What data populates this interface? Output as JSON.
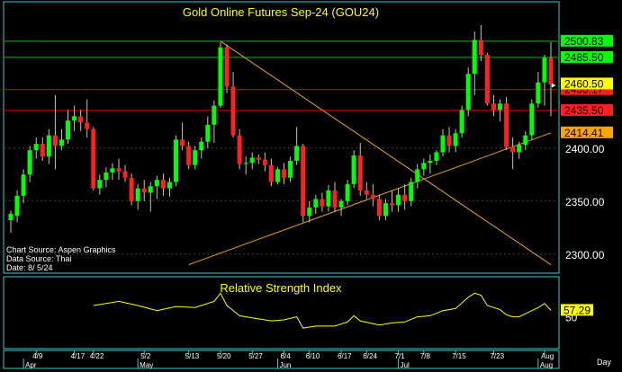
{
  "chart_data": [
    {
      "type": "candlestick",
      "title": "Gold  Online  Futures  Sep-24  (GOU24)",
      "ylim": [
        2282,
        2538
      ],
      "y_ticks": [
        2300,
        2350,
        2400
      ],
      "y_tick_labels": [
        "2300.00",
        "2350.00",
        "2400.00"
      ],
      "x_tick_labels": [
        "4/9",
        "4/17",
        "4/22",
        "5/2",
        "5/13",
        "5/20",
        "5/27",
        "6/4",
        "6/10",
        "6/17",
        "6/24",
        "7/1",
        "7/8",
        "7/15",
        "7/23",
        "Aug"
      ],
      "month_labels": [
        "Apr",
        "May",
        "Jun",
        "Jul",
        "Aug"
      ],
      "x_period_label": "Day",
      "source_lines": [
        "Chart Source: Aspen Graphics",
        "Data Source: Thai",
        "Date: 8/ 5/24"
      ],
      "candles": [
        {
          "date": "4/3",
          "o": 2332,
          "h": 2341,
          "l": 2320,
          "c": 2338
        },
        {
          "date": "4/4",
          "o": 2336,
          "h": 2360,
          "l": 2330,
          "c": 2355
        },
        {
          "date": "4/5",
          "o": 2355,
          "h": 2380,
          "l": 2348,
          "c": 2375
        },
        {
          "date": "4/8",
          "o": 2375,
          "h": 2402,
          "l": 2368,
          "c": 2398
        },
        {
          "date": "4/9",
          "o": 2398,
          "h": 2410,
          "l": 2390,
          "c": 2404
        },
        {
          "date": "4/10",
          "o": 2404,
          "h": 2410,
          "l": 2388,
          "c": 2392
        },
        {
          "date": "4/11",
          "o": 2392,
          "h": 2418,
          "l": 2385,
          "c": 2412
        },
        {
          "date": "4/12",
          "o": 2412,
          "h": 2450,
          "l": 2380,
          "c": 2402
        },
        {
          "date": "4/15",
          "o": 2402,
          "h": 2418,
          "l": 2398,
          "c": 2408
        },
        {
          "date": "4/16",
          "o": 2408,
          "h": 2436,
          "l": 2404,
          "c": 2426
        },
        {
          "date": "4/17",
          "o": 2426,
          "h": 2440,
          "l": 2416,
          "c": 2430
        },
        {
          "date": "4/18",
          "o": 2430,
          "h": 2436,
          "l": 2416,
          "c": 2424
        },
        {
          "date": "4/19",
          "o": 2424,
          "h": 2446,
          "l": 2410,
          "c": 2418
        },
        {
          "date": "4/22",
          "o": 2418,
          "h": 2420,
          "l": 2360,
          "c": 2362
        },
        {
          "date": "4/23",
          "o": 2362,
          "h": 2375,
          "l": 2356,
          "c": 2370
        },
        {
          "date": "4/24",
          "o": 2370,
          "h": 2382,
          "l": 2363,
          "c": 2377
        },
        {
          "date": "4/25",
          "o": 2377,
          "h": 2386,
          "l": 2370,
          "c": 2381
        },
        {
          "date": "4/26",
          "o": 2381,
          "h": 2390,
          "l": 2370,
          "c": 2378
        },
        {
          "date": "4/29",
          "o": 2378,
          "h": 2384,
          "l": 2368,
          "c": 2372
        },
        {
          "date": "4/30",
          "o": 2372,
          "h": 2376,
          "l": 2346,
          "c": 2350
        },
        {
          "date": "5/1",
          "o": 2350,
          "h": 2366,
          "l": 2342,
          "c": 2362
        },
        {
          "date": "5/2",
          "o": 2362,
          "h": 2370,
          "l": 2350,
          "c": 2358
        },
        {
          "date": "5/3",
          "o": 2358,
          "h": 2368,
          "l": 2340,
          "c": 2364
        },
        {
          "date": "5/6",
          "o": 2364,
          "h": 2374,
          "l": 2352,
          "c": 2370
        },
        {
          "date": "5/7",
          "o": 2370,
          "h": 2376,
          "l": 2355,
          "c": 2362
        },
        {
          "date": "5/8",
          "o": 2362,
          "h": 2372,
          "l": 2354,
          "c": 2368
        },
        {
          "date": "5/9",
          "o": 2368,
          "h": 2412,
          "l": 2364,
          "c": 2408
        },
        {
          "date": "5/10",
          "o": 2408,
          "h": 2424,
          "l": 2398,
          "c": 2402
        },
        {
          "date": "5/13",
          "o": 2402,
          "h": 2406,
          "l": 2380,
          "c": 2384
        },
        {
          "date": "5/14",
          "o": 2384,
          "h": 2402,
          "l": 2380,
          "c": 2398
        },
        {
          "date": "5/15",
          "o": 2398,
          "h": 2410,
          "l": 2390,
          "c": 2406
        },
        {
          "date": "5/16",
          "o": 2406,
          "h": 2430,
          "l": 2400,
          "c": 2422
        },
        {
          "date": "5/17",
          "o": 2422,
          "h": 2445,
          "l": 2405,
          "c": 2440
        },
        {
          "date": "5/20",
          "o": 2440,
          "h": 2500,
          "l": 2438,
          "c": 2495
        },
        {
          "date": "5/21",
          "o": 2495,
          "h": 2498,
          "l": 2452,
          "c": 2458
        },
        {
          "date": "5/22",
          "o": 2458,
          "h": 2472,
          "l": 2410,
          "c": 2412
        },
        {
          "date": "5/23",
          "o": 2412,
          "h": 2418,
          "l": 2380,
          "c": 2385
        },
        {
          "date": "5/24",
          "o": 2385,
          "h": 2392,
          "l": 2375,
          "c": 2386
        },
        {
          "date": "5/28",
          "o": 2386,
          "h": 2396,
          "l": 2380,
          "c": 2391
        },
        {
          "date": "5/29",
          "o": 2391,
          "h": 2394,
          "l": 2385,
          "c": 2389
        },
        {
          "date": "5/30",
          "o": 2389,
          "h": 2396,
          "l": 2378,
          "c": 2384
        },
        {
          "date": "5/31",
          "o": 2384,
          "h": 2390,
          "l": 2364,
          "c": 2368
        },
        {
          "date": "6/3",
          "o": 2368,
          "h": 2382,
          "l": 2366,
          "c": 2380
        },
        {
          "date": "6/4",
          "o": 2380,
          "h": 2386,
          "l": 2366,
          "c": 2372
        },
        {
          "date": "6/5",
          "o": 2372,
          "h": 2392,
          "l": 2368,
          "c": 2388
        },
        {
          "date": "6/6",
          "o": 2388,
          "h": 2420,
          "l": 2384,
          "c": 2402
        },
        {
          "date": "6/7",
          "o": 2402,
          "h": 2404,
          "l": 2330,
          "c": 2336
        },
        {
          "date": "6/10",
          "o": 2336,
          "h": 2350,
          "l": 2330,
          "c": 2344
        },
        {
          "date": "6/11",
          "o": 2344,
          "h": 2356,
          "l": 2338,
          "c": 2352
        },
        {
          "date": "6/12",
          "o": 2352,
          "h": 2358,
          "l": 2340,
          "c": 2345
        },
        {
          "date": "6/13",
          "o": 2345,
          "h": 2365,
          "l": 2340,
          "c": 2360
        },
        {
          "date": "6/14",
          "o": 2360,
          "h": 2368,
          "l": 2340,
          "c": 2344
        },
        {
          "date": "6/17",
          "o": 2344,
          "h": 2352,
          "l": 2336,
          "c": 2350
        },
        {
          "date": "6/18",
          "o": 2350,
          "h": 2370,
          "l": 2346,
          "c": 2366
        },
        {
          "date": "6/20",
          "o": 2366,
          "h": 2398,
          "l": 2362,
          "c": 2393
        },
        {
          "date": "6/21",
          "o": 2393,
          "h": 2405,
          "l": 2355,
          "c": 2360
        },
        {
          "date": "6/24",
          "o": 2360,
          "h": 2368,
          "l": 2352,
          "c": 2356
        },
        {
          "date": "6/25",
          "o": 2356,
          "h": 2366,
          "l": 2345,
          "c": 2352
        },
        {
          "date": "6/26",
          "o": 2352,
          "h": 2356,
          "l": 2332,
          "c": 2336
        },
        {
          "date": "6/27",
          "o": 2336,
          "h": 2352,
          "l": 2332,
          "c": 2348
        },
        {
          "date": "6/28",
          "o": 2348,
          "h": 2360,
          "l": 2340,
          "c": 2346
        },
        {
          "date": "7/1",
          "o": 2346,
          "h": 2362,
          "l": 2340,
          "c": 2356
        },
        {
          "date": "7/2",
          "o": 2356,
          "h": 2366,
          "l": 2342,
          "c": 2350
        },
        {
          "date": "7/3",
          "o": 2350,
          "h": 2372,
          "l": 2345,
          "c": 2368
        },
        {
          "date": "7/5",
          "o": 2368,
          "h": 2385,
          "l": 2362,
          "c": 2380
        },
        {
          "date": "7/8",
          "o": 2380,
          "h": 2390,
          "l": 2374,
          "c": 2386
        },
        {
          "date": "7/9",
          "o": 2386,
          "h": 2394,
          "l": 2376,
          "c": 2388
        },
        {
          "date": "7/10",
          "o": 2388,
          "h": 2398,
          "l": 2384,
          "c": 2396
        },
        {
          "date": "7/11",
          "o": 2396,
          "h": 2418,
          "l": 2392,
          "c": 2412
        },
        {
          "date": "7/12",
          "o": 2412,
          "h": 2420,
          "l": 2396,
          "c": 2402
        },
        {
          "date": "7/15",
          "o": 2402,
          "h": 2418,
          "l": 2396,
          "c": 2414
        },
        {
          "date": "7/16",
          "o": 2414,
          "h": 2440,
          "l": 2410,
          "c": 2436
        },
        {
          "date": "7/17",
          "o": 2436,
          "h": 2476,
          "l": 2430,
          "c": 2470
        },
        {
          "date": "7/18",
          "o": 2470,
          "h": 2510,
          "l": 2450,
          "c": 2502
        },
        {
          "date": "7/19",
          "o": 2502,
          "h": 2516,
          "l": 2482,
          "c": 2488
        },
        {
          "date": "7/22",
          "o": 2488,
          "h": 2490,
          "l": 2440,
          "c": 2442
        },
        {
          "date": "7/23",
          "o": 2442,
          "h": 2450,
          "l": 2430,
          "c": 2436
        },
        {
          "date": "7/24",
          "o": 2436,
          "h": 2446,
          "l": 2425,
          "c": 2442
        },
        {
          "date": "7/25",
          "o": 2442,
          "h": 2448,
          "l": 2398,
          "c": 2401
        },
        {
          "date": "7/26",
          "o": 2401,
          "h": 2410,
          "l": 2380,
          "c": 2396
        },
        {
          "date": "7/29",
          "o": 2396,
          "h": 2406,
          "l": 2390,
          "c": 2403
        },
        {
          "date": "7/30",
          "o": 2403,
          "h": 2416,
          "l": 2398,
          "c": 2412
        },
        {
          "date": "7/31",
          "o": 2412,
          "h": 2446,
          "l": 2408,
          "c": 2442
        },
        {
          "date": "8/1",
          "o": 2442,
          "h": 2472,
          "l": 2438,
          "c": 2462
        },
        {
          "date": "8/2",
          "o": 2462,
          "h": 2488,
          "l": 2440,
          "c": 2485
        },
        {
          "date": "8/5",
          "o": 2485,
          "h": 2500,
          "l": 2430,
          "c": 2460
        }
      ],
      "horizontal_lines": [
        {
          "value": 2500.83,
          "label": "2500.83",
          "color": "#00c000",
          "label_bg": "#00ff00",
          "label_fg": "#000000"
        },
        {
          "value": 2485.5,
          "label": "2485.50",
          "color": "#00c000",
          "label_bg": "#00ff00",
          "label_fg": "#000000"
        },
        {
          "value": 2455.17,
          "label": "2455.17",
          "color": "#e00000",
          "label_bg": "#ff2020",
          "label_fg": "#000000"
        },
        {
          "value": 2435.5,
          "label": "2435.50",
          "color": "#e00000",
          "label_bg": "#ff2020",
          "label_fg": "#000000"
        }
      ],
      "last_price_label": {
        "value": 2460.5,
        "label": "2460.50",
        "bg": "#ffff00",
        "fg": "#000000"
      },
      "trend_label": {
        "value": 2414.41,
        "label": "2414.41",
        "bg": "#ffa500",
        "fg": "#000000"
      },
      "trendlines": [
        {
          "from": {
            "date": "5/20",
            "y": 2500.83
          },
          "to": {
            "date": "8/5",
            "y": 2290
          },
          "color": "#e8a020"
        },
        {
          "from": {
            "date": "5/13",
            "y": 2290
          },
          "to": {
            "date": "8/5",
            "y": 2414.41
          },
          "color": "#e8a020"
        }
      ],
      "colors": {
        "up": "#00ff00",
        "down": "#ff2020",
        "wick": "#c8c8a0",
        "frame": "#30d0d0",
        "title": "#ffff00"
      }
    },
    {
      "type": "line",
      "title": "Relative  Strength  Index",
      "ylim": [
        20,
        90
      ],
      "y_ticks": [
        50
      ],
      "y_tick_labels": [
        "50"
      ],
      "last_value_label": "57.29",
      "series": [
        {
          "color": "#ffff00",
          "values": [
            {
              "date": "4/22",
              "y": 62
            },
            {
              "date": "4/26",
              "y": 66
            },
            {
              "date": "5/1",
              "y": 62
            },
            {
              "date": "5/6",
              "y": 57
            },
            {
              "date": "5/9",
              "y": 61
            },
            {
              "date": "5/14",
              "y": 60
            },
            {
              "date": "5/17",
              "y": 66
            },
            {
              "date": "5/20",
              "y": 74
            },
            {
              "date": "5/21",
              "y": 62
            },
            {
              "date": "5/23",
              "y": 52
            },
            {
              "date": "5/28",
              "y": 50
            },
            {
              "date": "5/31",
              "y": 47
            },
            {
              "date": "6/4",
              "y": 48
            },
            {
              "date": "6/6",
              "y": 51
            },
            {
              "date": "6/7",
              "y": 40
            },
            {
              "date": "6/11",
              "y": 42
            },
            {
              "date": "6/14",
              "y": 42
            },
            {
              "date": "6/18",
              "y": 46
            },
            {
              "date": "6/20",
              "y": 52
            },
            {
              "date": "6/21",
              "y": 47
            },
            {
              "date": "6/26",
              "y": 43
            },
            {
              "date": "6/28",
              "y": 45
            },
            {
              "date": "7/2",
              "y": 46
            },
            {
              "date": "7/5",
              "y": 51
            },
            {
              "date": "7/9",
              "y": 52
            },
            {
              "date": "7/11",
              "y": 57
            },
            {
              "date": "7/15",
              "y": 59
            },
            {
              "date": "7/17",
              "y": 70
            },
            {
              "date": "7/18",
              "y": 74
            },
            {
              "date": "7/19",
              "y": 72
            },
            {
              "date": "7/22",
              "y": 62
            },
            {
              "date": "7/24",
              "y": 58
            },
            {
              "date": "7/25",
              "y": 53
            },
            {
              "date": "7/26",
              "y": 51
            },
            {
              "date": "7/29",
              "y": 51
            },
            {
              "date": "7/31",
              "y": 57
            },
            {
              "date": "8/1",
              "y": 60
            },
            {
              "date": "8/2",
              "y": 64
            },
            {
              "date": "8/5",
              "y": 57.29
            }
          ]
        }
      ]
    }
  ]
}
